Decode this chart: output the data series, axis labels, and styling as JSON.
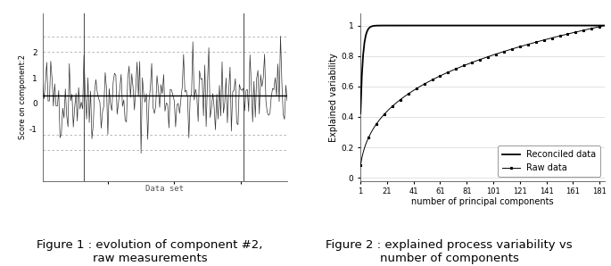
{
  "fig1": {
    "title": "Figure 1 : evolution of component #2,\nraw measurements",
    "ylabel": "Score on component:2",
    "xlabel": "Data set",
    "n_points": 185,
    "mean": 0.3,
    "std": 0.85,
    "seed": 42,
    "hline_y": 0.3,
    "dashed_lines": [
      2.0,
      -1.2,
      2.6,
      -1.8
    ],
    "ylim": [
      -3.0,
      3.5
    ],
    "vline1": 32,
    "vline2": 152,
    "line_color": "#333333",
    "hline_color": "#000000",
    "dashed_color": "#aaaaaa",
    "vline_color": "#555555",
    "ytick_labels": [
      "2",
      "1",
      "0",
      "-1"
    ],
    "ytick_vals": [
      2.0,
      1.0,
      0.0,
      -1.0
    ]
  },
  "fig2": {
    "title": "Figure 2 : explained process variability vs\nnumber of components",
    "ylabel": "Explained variability",
    "xlabel": "number of principal components",
    "n_components": 185,
    "reconciled_label": "Reconciled data",
    "raw_label": "Raw data",
    "xticks": [
      1,
      21,
      41,
      61,
      81,
      101,
      121,
      141,
      161,
      181
    ],
    "yticks": [
      0,
      0.2,
      0.4,
      0.6,
      0.8,
      1
    ],
    "xlim": [
      1,
      185
    ],
    "ylim": [
      -0.02,
      1.08
    ],
    "reconciled_color": "#000000",
    "raw_color": "#000000"
  },
  "background_color": "#ffffff",
  "fig_width": 6.85,
  "fig_height": 2.98,
  "dpi": 100
}
